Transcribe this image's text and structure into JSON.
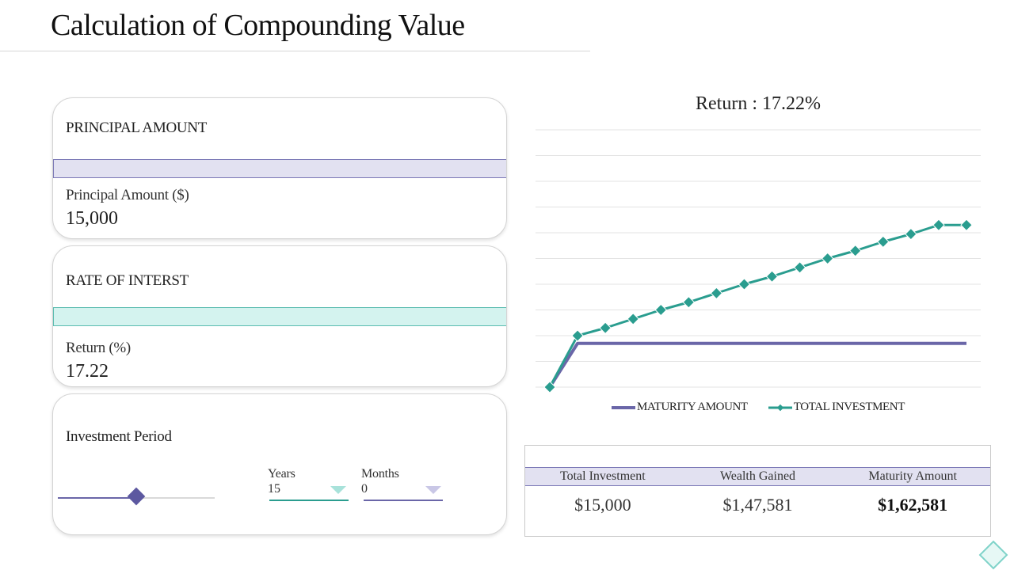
{
  "title": "Calculation of  Compounding Value",
  "principal": {
    "heading": "PRINCIPAL AMOUNT",
    "label": "Principal Amount ($)",
    "value": "15,000"
  },
  "rate": {
    "heading": "RATE OF INTERST",
    "label": "Return (%)",
    "value": "17.22"
  },
  "period": {
    "heading": "Investment Period",
    "slider_level": 0.5,
    "years_label": "Years",
    "years_value": "15",
    "months_label": "Months",
    "months_value": "0"
  },
  "summary": {
    "headers": [
      "Total Investment",
      "Wealth Gained",
      "Maturity Amount"
    ],
    "values": [
      "$15,000",
      "$1,47,581",
      "$1,62,581"
    ]
  },
  "colors": {
    "purple": "#6a66a8",
    "teal": "#2a9d8f",
    "band_purple": "#e2e1f1",
    "band_teal": "#d4f3ef"
  },
  "icons": [
    "diamond-icon"
  ],
  "chart_data": {
    "type": "line",
    "title": "Return : 17.22%",
    "xlabel": "",
    "ylabel": "",
    "grid": true,
    "legend_position": "bottom",
    "x": [
      0,
      1,
      2,
      3,
      4,
      5,
      6,
      7,
      8,
      9,
      10,
      11,
      12,
      13,
      14,
      15
    ],
    "ylim": [
      0,
      10
    ],
    "series": [
      {
        "name": "MATURITY AMOUNT",
        "color": "#6a66a8",
        "marker": "none",
        "values": [
          0,
          1.7,
          1.7,
          1.7,
          1.7,
          1.7,
          1.7,
          1.7,
          1.7,
          1.7,
          1.7,
          1.7,
          1.7,
          1.7,
          1.7,
          1.7
        ]
      },
      {
        "name": "TOTAL INVESTMENT",
        "color": "#2a9d8f",
        "marker": "diamond",
        "values": [
          0,
          2.0,
          2.3,
          2.65,
          3.0,
          3.3,
          3.65,
          4.0,
          4.3,
          4.65,
          5.0,
          5.3,
          5.65,
          5.95,
          6.3,
          6.3
        ]
      }
    ]
  }
}
